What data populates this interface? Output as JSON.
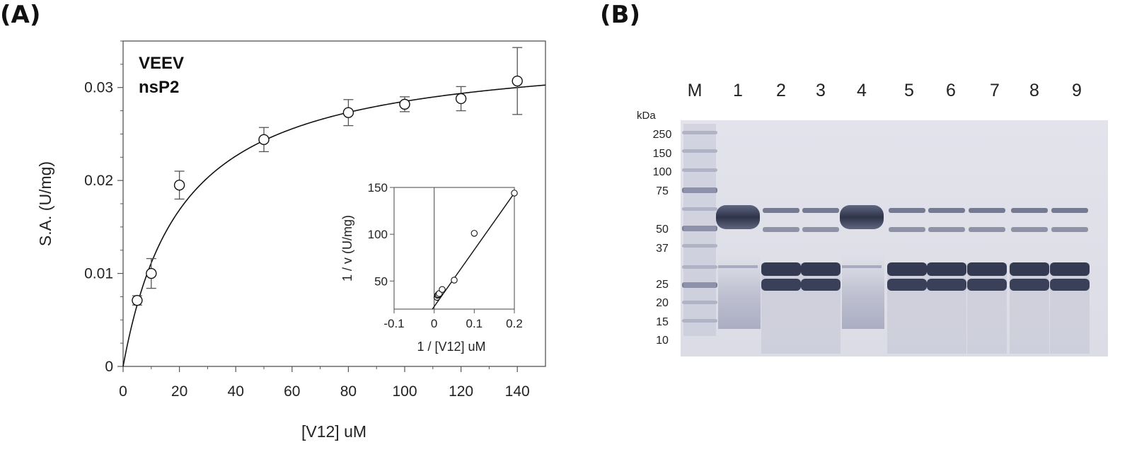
{
  "panels": {
    "a_label": "(A)",
    "b_label": "(B)"
  },
  "chart_data": [
    {
      "type": "scatter",
      "panel": "A",
      "annotation": [
        "VEEV",
        "nsP2"
      ],
      "xlabel": "[V12] uM",
      "ylabel": "S.A. (U/mg)",
      "xlim": [
        0,
        150
      ],
      "ylim": [
        0,
        0.035
      ],
      "xticks": [
        0,
        20,
        40,
        60,
        80,
        100,
        120,
        140
      ],
      "xtick_labels": [
        "0",
        "20",
        "40",
        "60",
        "80",
        "100",
        "120",
        "140"
      ],
      "yticks": [
        0,
        0.01,
        0.02,
        0.03
      ],
      "ytick_labels": [
        "0",
        "0.01",
        "0.02",
        "0.03"
      ],
      "points": [
        {
          "x": 5,
          "y": 0.0071,
          "err": 0.0005
        },
        {
          "x": 10,
          "y": 0.01,
          "err": 0.0016
        },
        {
          "x": 20,
          "y": 0.0195,
          "err": 0.0015
        },
        {
          "x": 50,
          "y": 0.0244,
          "err": 0.0013
        },
        {
          "x": 80,
          "y": 0.0273,
          "err": 0.0014
        },
        {
          "x": 100,
          "y": 0.0282,
          "err": 0.0008
        },
        {
          "x": 120,
          "y": 0.0288,
          "err": 0.0013
        },
        {
          "x": 140,
          "y": 0.0307,
          "err": 0.0036
        }
      ],
      "fit": {
        "model": "Michaelis-Menten",
        "vmax": 0.0345,
        "km": 21
      }
    },
    {
      "type": "scatter",
      "panel": "A-inset",
      "xlabel": "1 / [V12] uM",
      "ylabel": "1 / v (U/mg)",
      "xlim": [
        -0.1,
        0.2
      ],
      "ylim": [
        20,
        150
      ],
      "xticks": [
        -0.1,
        0,
        0.1,
        0.2
      ],
      "xtick_labels": [
        "-0.1",
        "0",
        "0.1",
        "0.2"
      ],
      "yticks": [
        50,
        100,
        150
      ],
      "ytick_labels": [
        "50",
        "100",
        "150"
      ],
      "points": [
        {
          "x": 0.0071,
          "y": 32.6
        },
        {
          "x": 0.0083,
          "y": 34.7
        },
        {
          "x": 0.01,
          "y": 35.5
        },
        {
          "x": 0.0125,
          "y": 36.6
        },
        {
          "x": 0.02,
          "y": 41.0
        },
        {
          "x": 0.05,
          "y": 51.0
        },
        {
          "x": 0.1,
          "y": 101.0
        },
        {
          "x": 0.2,
          "y": 144.0
        }
      ],
      "fit": {
        "x": [
          -0.0045,
          0.2
        ],
        "y": [
          20,
          144
        ]
      }
    }
  ],
  "gel": {
    "lanes": [
      "M",
      "1",
      "2",
      "3",
      "4",
      "5",
      "6",
      "7",
      "8",
      "9"
    ],
    "kda_label": "kDa",
    "markers": [
      "250",
      "150",
      "100",
      "75",
      "50",
      "37",
      "25",
      "20",
      "15",
      "10"
    ]
  }
}
